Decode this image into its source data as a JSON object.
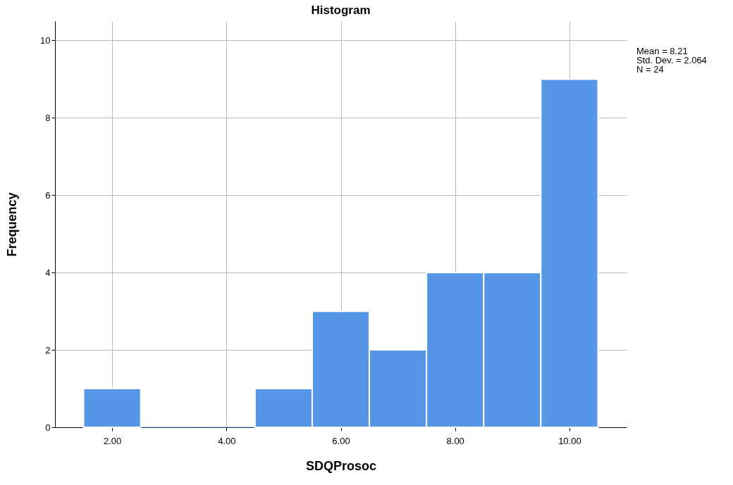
{
  "chart_data": {
    "type": "histogram",
    "title": "Histogram",
    "xlabel": "SDQProsoc",
    "ylabel": "Frequency",
    "bins": [
      1.5,
      2.5,
      3.5,
      4.5,
      5.5,
      6.5,
      7.5,
      8.5,
      9.5,
      10.5
    ],
    "values": [
      1,
      0,
      0,
      1,
      3,
      2,
      4,
      4,
      9
    ],
    "color": "#5596e6",
    "xlim": [
      1,
      11
    ],
    "xticks": [
      {
        "value": 2,
        "label": "2.00"
      },
      {
        "value": 4,
        "label": "4.00"
      },
      {
        "value": 6,
        "label": "6.00"
      },
      {
        "value": 8,
        "label": "8.00"
      },
      {
        "value": 10,
        "label": "10.00"
      }
    ],
    "ylim": [
      0,
      10.5
    ],
    "yticks": [
      0,
      2,
      4,
      6,
      8,
      10
    ],
    "grid": true,
    "annotations": [
      "Mean = 8.21",
      "Std. Dev. = 2.064",
      "N = 24"
    ]
  }
}
